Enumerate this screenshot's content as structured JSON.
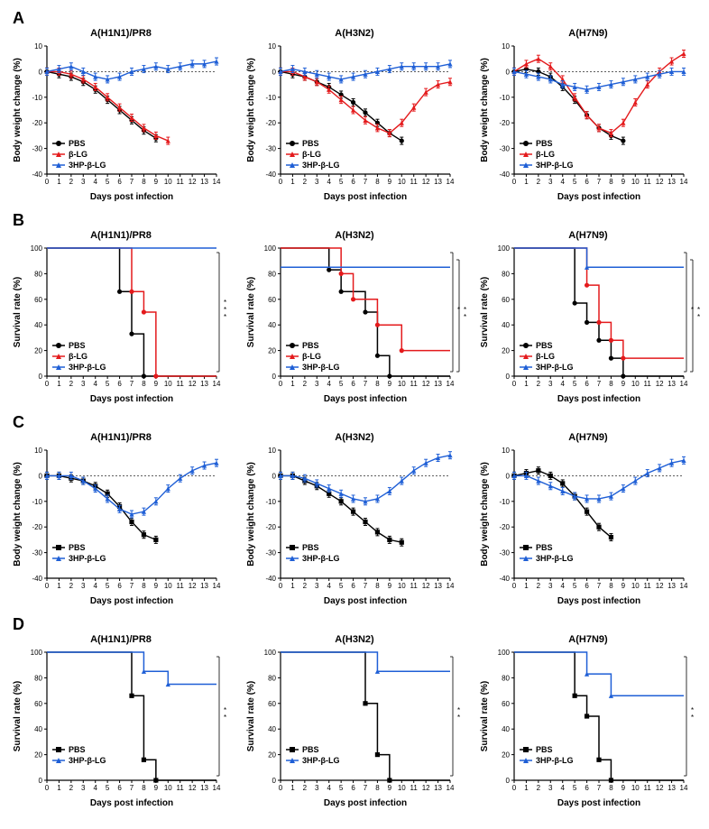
{
  "colors": {
    "black": "#000000",
    "red": "#e41a1c",
    "blue": "#1f5fd6"
  },
  "markers": {
    "pbs": "circle",
    "blg": "triangle",
    "hp": "triangle"
  },
  "panelLabels": {
    "A": "A",
    "B": "B",
    "C": "C",
    "D": "D"
  },
  "strains": [
    "A(H1N1)/PR8",
    "A(H3N2)",
    "A(H7N9)"
  ],
  "axis": {
    "bw": {
      "label": "Body weight change (%)",
      "min": -40,
      "max": 10,
      "step": 10,
      "dashed_at": 0
    },
    "surv": {
      "label": "Survival rate (%)",
      "min": 0,
      "max": 100,
      "step": 20
    },
    "x": {
      "label": "Days post infection",
      "min": 0,
      "max": 14,
      "step": 1
    }
  },
  "legend": {
    "three": [
      {
        "key": "PBS",
        "color": "black",
        "marker": "circle"
      },
      {
        "key": "β-LG",
        "color": "red",
        "marker": "triangle"
      },
      {
        "key": "3HP-β-LG",
        "color": "blue",
        "marker": "triangle"
      }
    ],
    "two": [
      {
        "key": "PBS",
        "color": "black",
        "marker": "square"
      },
      {
        "key": "3HP-β-LG",
        "color": "blue",
        "marker": "triangle"
      }
    ]
  },
  "A": [
    {
      "pbs": [
        0,
        -1,
        -2,
        -4,
        -7,
        -11,
        -15,
        -19,
        -23,
        -26,
        null,
        null,
        null,
        null,
        null
      ],
      "blg": [
        0,
        0,
        -1,
        -3,
        -6,
        -10,
        -14,
        -18,
        -22,
        -25,
        -27,
        null,
        null,
        null,
        null
      ],
      "hp": [
        0,
        1,
        2,
        0,
        -2,
        -3,
        -2,
        0,
        1,
        2,
        1,
        2,
        3,
        3,
        4
      ]
    },
    {
      "pbs": [
        0,
        -1,
        -2,
        -4,
        -6,
        -9,
        -12,
        -16,
        -20,
        -24,
        -27,
        null,
        null,
        null,
        null
      ],
      "blg": [
        0,
        0,
        -2,
        -4,
        -7,
        -11,
        -15,
        -19,
        -22,
        -24,
        -20,
        -14,
        -8,
        -5,
        -4
      ],
      "hp": [
        0,
        1,
        0,
        -1,
        -2,
        -3,
        -2,
        -1,
        0,
        1,
        2,
        2,
        2,
        2,
        3
      ]
    },
    {
      "pbs": [
        0,
        1,
        0,
        -2,
        -6,
        -11,
        -17,
        -22,
        -25,
        -27,
        null,
        null,
        null,
        null,
        null
      ],
      "blg": [
        0,
        3,
        5,
        2,
        -3,
        -10,
        -17,
        -22,
        -24,
        -20,
        -12,
        -5,
        0,
        4,
        7
      ],
      "hp": [
        0,
        -1,
        -2,
        -3,
        -5,
        -6,
        -7,
        -6,
        -5,
        -4,
        -3,
        -2,
        -1,
        0,
        0
      ]
    }
  ],
  "B": [
    {
      "pbs": [
        [
          0,
          100
        ],
        [
          6,
          100
        ],
        [
          6,
          66
        ],
        [
          7,
          66
        ],
        [
          7,
          33
        ],
        [
          8,
          33
        ],
        [
          8,
          0
        ],
        [
          14,
          0
        ]
      ],
      "blg": [
        [
          0,
          100
        ],
        [
          7,
          100
        ],
        [
          7,
          66
        ],
        [
          8,
          66
        ],
        [
          8,
          50
        ],
        [
          9,
          50
        ],
        [
          9,
          0
        ],
        [
          14,
          0
        ]
      ],
      "hp": [
        [
          0,
          100
        ],
        [
          14,
          100
        ]
      ],
      "sig": [
        [
          "***",
          "pbs_hp"
        ]
      ]
    },
    {
      "pbs": [
        [
          0,
          100
        ],
        [
          4,
          100
        ],
        [
          4,
          83
        ],
        [
          5,
          83
        ],
        [
          5,
          66
        ],
        [
          7,
          66
        ],
        [
          7,
          50
        ],
        [
          8,
          50
        ],
        [
          8,
          16
        ],
        [
          9,
          16
        ],
        [
          9,
          0
        ],
        [
          14,
          0
        ]
      ],
      "blg": [
        [
          0,
          100
        ],
        [
          5,
          100
        ],
        [
          5,
          80
        ],
        [
          6,
          80
        ],
        [
          6,
          60
        ],
        [
          8,
          60
        ],
        [
          8,
          40
        ],
        [
          10,
          40
        ],
        [
          10,
          20
        ],
        [
          14,
          20
        ]
      ],
      "hp": [
        [
          0,
          85
        ],
        [
          14,
          85
        ]
      ],
      "sig": [
        [
          "*",
          "blg_hp"
        ],
        [
          "**",
          "pbs_hp"
        ]
      ]
    },
    {
      "pbs": [
        [
          0,
          100
        ],
        [
          5,
          100
        ],
        [
          5,
          57
        ],
        [
          6,
          57
        ],
        [
          6,
          42
        ],
        [
          7,
          42
        ],
        [
          7,
          28
        ],
        [
          8,
          28
        ],
        [
          8,
          14
        ],
        [
          9,
          14
        ],
        [
          9,
          0
        ],
        [
          14,
          0
        ]
      ],
      "blg": [
        [
          0,
          100
        ],
        [
          6,
          100
        ],
        [
          6,
          71
        ],
        [
          7,
          71
        ],
        [
          7,
          42
        ],
        [
          8,
          42
        ],
        [
          8,
          28
        ],
        [
          9,
          28
        ],
        [
          9,
          14
        ],
        [
          14,
          14
        ]
      ],
      "hp": [
        [
          0,
          100
        ],
        [
          6,
          100
        ],
        [
          6,
          85
        ],
        [
          14,
          85
        ]
      ],
      "sig": [
        [
          "*",
          "blg_hp"
        ],
        [
          "**",
          "pbs_hp"
        ]
      ]
    }
  ],
  "C": [
    {
      "pbs": [
        0,
        0,
        -1,
        -2,
        -4,
        -7,
        -12,
        -18,
        -23,
        -25,
        null,
        null,
        null,
        null,
        null
      ],
      "hp": [
        0,
        0,
        0,
        -2,
        -5,
        -9,
        -13,
        -15,
        -14,
        -10,
        -5,
        -1,
        2,
        4,
        5
      ]
    },
    {
      "pbs": [
        0,
        0,
        -2,
        -4,
        -7,
        -10,
        -14,
        -18,
        -22,
        -25,
        -26,
        null,
        null,
        null,
        null
      ],
      "hp": [
        0,
        0,
        -1,
        -3,
        -5,
        -7,
        -9,
        -10,
        -9,
        -6,
        -2,
        2,
        5,
        7,
        8
      ]
    },
    {
      "pbs": [
        0,
        1,
        2,
        0,
        -3,
        -8,
        -14,
        -20,
        -24,
        null,
        null,
        null,
        null,
        null,
        null
      ],
      "hp": [
        0,
        0,
        -2,
        -4,
        -6,
        -8,
        -9,
        -9,
        -8,
        -5,
        -2,
        1,
        3,
        5,
        6
      ]
    }
  ],
  "D": [
    {
      "pbs": [
        [
          0,
          100
        ],
        [
          7,
          100
        ],
        [
          7,
          66
        ],
        [
          8,
          66
        ],
        [
          8,
          16
        ],
        [
          9,
          16
        ],
        [
          9,
          0
        ],
        [
          14,
          0
        ]
      ],
      "hp": [
        [
          0,
          100
        ],
        [
          8,
          100
        ],
        [
          8,
          85
        ],
        [
          10,
          85
        ],
        [
          10,
          75
        ],
        [
          14,
          75
        ]
      ],
      "sig": [
        [
          "**",
          "pbs_hp"
        ]
      ]
    },
    {
      "pbs": [
        [
          0,
          100
        ],
        [
          7,
          100
        ],
        [
          7,
          60
        ],
        [
          8,
          60
        ],
        [
          8,
          20
        ],
        [
          9,
          20
        ],
        [
          9,
          0
        ],
        [
          10,
          0
        ],
        [
          14,
          0
        ]
      ],
      "hp": [
        [
          0,
          100
        ],
        [
          8,
          100
        ],
        [
          8,
          85
        ],
        [
          14,
          85
        ]
      ],
      "sig": [
        [
          "**",
          "pbs_hp"
        ]
      ]
    },
    {
      "pbs": [
        [
          0,
          100
        ],
        [
          5,
          100
        ],
        [
          5,
          66
        ],
        [
          6,
          66
        ],
        [
          6,
          50
        ],
        [
          7,
          50
        ],
        [
          7,
          16
        ],
        [
          8,
          16
        ],
        [
          8,
          0
        ],
        [
          14,
          0
        ]
      ],
      "hp": [
        [
          0,
          100
        ],
        [
          6,
          100
        ],
        [
          6,
          83
        ],
        [
          8,
          83
        ],
        [
          8,
          66
        ],
        [
          14,
          66
        ]
      ],
      "sig": [
        [
          "**",
          "pbs_hp"
        ]
      ]
    }
  ]
}
